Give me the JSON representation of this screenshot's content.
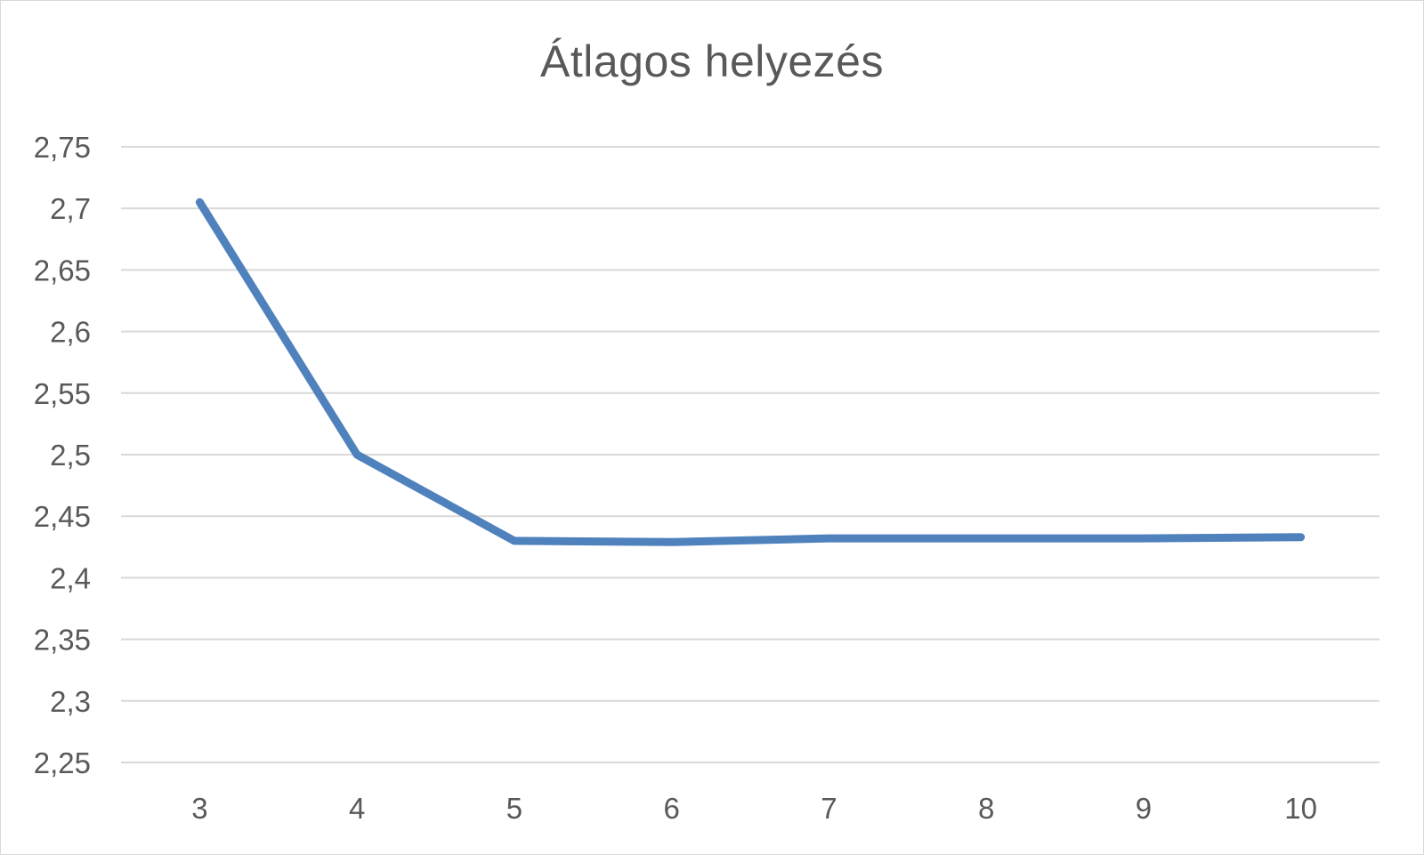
{
  "chart_data": {
    "type": "line",
    "title": "Átlagos helyezés",
    "xlabel": "",
    "ylabel": "",
    "categories": [
      "3",
      "4",
      "5",
      "6",
      "7",
      "8",
      "9",
      "10"
    ],
    "series": [
      {
        "values": [
          2.705,
          2.5,
          2.43,
          2.429,
          2.432,
          2.432,
          2.432,
          2.433
        ],
        "color": "#4f81bd"
      }
    ],
    "ylim": [
      2.25,
      2.75
    ],
    "y_ticks": [
      "2,25",
      "2,3",
      "2,35",
      "2,4",
      "2,45",
      "2,5",
      "2,55",
      "2,6",
      "2,65",
      "2,7",
      "2,75"
    ],
    "y_tick_values": [
      2.25,
      2.3,
      2.35,
      2.4,
      2.45,
      2.5,
      2.55,
      2.6,
      2.65,
      2.7,
      2.75
    ],
    "grid": true,
    "gridline_color": "#d9d9d9",
    "legend": "none"
  }
}
